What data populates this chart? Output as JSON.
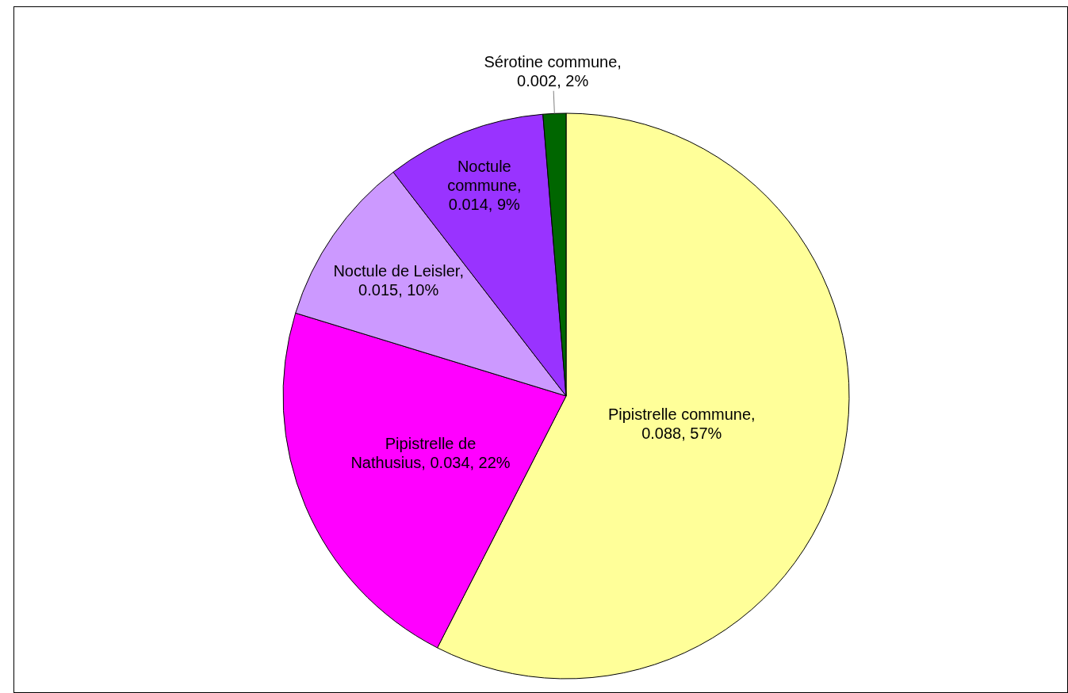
{
  "chart_data": {
    "type": "pie",
    "categories": [
      "Pipistrelle commune",
      "Pipistrelle de Nathusius",
      "Noctule de Leisler",
      "Noctule commune",
      "Sérotine commune"
    ],
    "values": [
      0.088,
      0.034,
      0.015,
      0.014,
      0.002
    ],
    "value_labels": [
      ", 0.088, 57%",
      ", 0.034, 22%",
      ", 0.015, 10%",
      ", 0.014, 9%",
      ", 0.002, 2%"
    ],
    "colors": [
      "#ffff99",
      "#ff00ff",
      "#cc99ff",
      "#9933ff",
      "#006600"
    ],
    "legend": false
  }
}
